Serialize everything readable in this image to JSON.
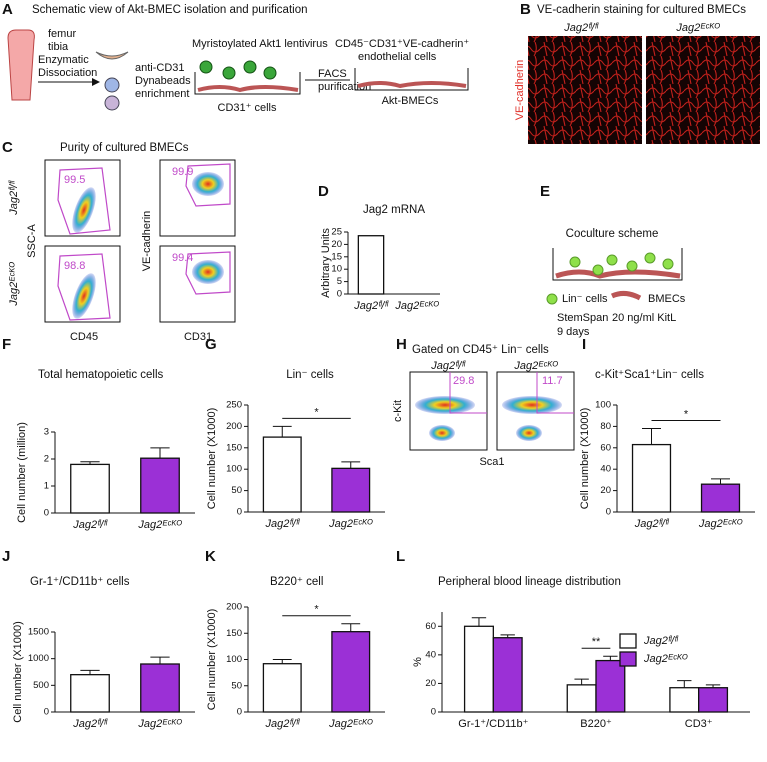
{
  "panel_letters": [
    "A",
    "B",
    "C",
    "D",
    "E",
    "F",
    "G",
    "H",
    "I",
    "J",
    "K",
    "L"
  ],
  "schematic": {
    "title": "Schematic view of Akt-BMEC isolation and purification",
    "bones": [
      "femur",
      "tibia"
    ],
    "dissociation": [
      "Enzymatic",
      "Dissociation"
    ],
    "enrichment": [
      "anti-CD31",
      "Dynabeads",
      "enrichment"
    ],
    "lentivirus": "Myristoylated Akt1 lentivirus",
    "cd31_cells": "CD31⁺ cells",
    "facs": [
      "FACS",
      "purification"
    ],
    "endothelial": [
      "CD45⁻CD31⁺VE-cadherin⁺",
      "endothelial cells"
    ],
    "akt_bmecs": "Akt-BMECs"
  },
  "staining": {
    "title": "VE-cadherin staining for cultured BMECs",
    "groups": [
      "Jag2ᶠˡ/ᶠˡ",
      "Jag2ᴱᶜᴷᴼ"
    ],
    "ylabel": "VE-cadherin"
  },
  "purity": {
    "title": "Purity of cultured BMECs",
    "rows": [
      "Jag2ᶠˡ/ᶠˡ",
      "Jag2ᴱᶜᴷᴼ"
    ],
    "left_ylabel": "SSC-A",
    "left_xlabel": "CD45",
    "right_ylabel": "VE-cadherin",
    "right_xlabel": "CD31",
    "left_gates": [
      "99.5",
      "98.8"
    ],
    "right_gates": [
      "99.9",
      "99.4"
    ]
  },
  "coculture": {
    "title": "Coculture scheme",
    "lin_cells": "Lin⁻ cells",
    "bmecs": "BMECs",
    "medium": [
      "StemSpan",
      "9 days"
    ],
    "kitl": "20 ng/ml KitL"
  },
  "gating": {
    "title": "Gated on CD45⁺ Lin⁻ cells",
    "groups": [
      "Jag2ᶠˡ/ᶠˡ",
      "Jag2ᴱᶜᴷᴼ"
    ],
    "gates": [
      "29.8",
      "11.7"
    ],
    "ylabel": "c-Kit",
    "xlabel": "Sca1"
  },
  "chart_data": [
    {
      "type": "bar",
      "title": "Jag2 mRNA",
      "ylabel": "Arbitrary Units",
      "categories": [
        "Jag2ᶠˡ/ᶠˡ",
        "Jag2ᴱᶜᴷᴼ"
      ],
      "values": [
        23.5,
        0
      ],
      "colors": [
        "#ffffff",
        "#ffffff"
      ],
      "ylim": [
        0,
        25
      ],
      "yticks": [
        0,
        5,
        10,
        15,
        20,
        25
      ]
    },
    {
      "type": "bar",
      "title": "Total hematopoietic cells",
      "ylabel": "Cell number (million)",
      "categories": [
        "Jag2ᶠˡ/ᶠˡ",
        "Jag2ᴱᶜᴷᴼ"
      ],
      "values": [
        1.8,
        2.03
      ],
      "errors": [
        0.1,
        0.38
      ],
      "colors": [
        "#ffffff",
        "#9b30d6"
      ],
      "ylim": [
        0,
        3
      ],
      "yticks": [
        0,
        1,
        2,
        3
      ]
    },
    {
      "type": "bar",
      "title": "Lin⁻ cells",
      "ylabel": "Cell number (X1000)",
      "categories": [
        "Jag2ᶠˡ/ᶠˡ",
        "Jag2ᴱᶜᴷᴼ"
      ],
      "values": [
        175,
        102
      ],
      "errors": [
        25,
        15
      ],
      "colors": [
        "#ffffff",
        "#9b30d6"
      ],
      "ylim": [
        0,
        250
      ],
      "yticks": [
        0,
        50,
        100,
        150,
        200,
        250
      ],
      "significance": "*"
    },
    {
      "type": "bar",
      "title": "c-Kit⁺Sca1⁺Lin⁻ cells",
      "ylabel": "Cell number (X1000)",
      "categories": [
        "Jag2ᶠˡ/ᶠˡ",
        "Jag2ᴱᶜᴷᴼ"
      ],
      "values": [
        63,
        26
      ],
      "errors": [
        15,
        5
      ],
      "colors": [
        "#ffffff",
        "#9b30d6"
      ],
      "ylim": [
        0,
        100
      ],
      "yticks": [
        0,
        20,
        40,
        60,
        80,
        100
      ],
      "significance": "*"
    },
    {
      "type": "bar",
      "title": "Gr-1⁺/CD11b⁺ cells",
      "ylabel": "Cell number (X1000)",
      "categories": [
        "Jag2ᶠˡ/ᶠˡ",
        "Jag2ᴱᶜᴷᴼ"
      ],
      "values": [
        700,
        900
      ],
      "errors": [
        80,
        130
      ],
      "colors": [
        "#ffffff",
        "#9b30d6"
      ],
      "ylim": [
        0,
        1500
      ],
      "yticks": [
        0,
        500,
        1000,
        1500
      ]
    },
    {
      "type": "bar",
      "title": "B220⁺ cell",
      "ylabel": "Cell number (X1000)",
      "categories": [
        "Jag2ᶠˡ/ᶠˡ",
        "Jag2ᴱᶜᴷᴼ"
      ],
      "values": [
        92,
        153
      ],
      "errors": [
        8,
        15
      ],
      "colors": [
        "#ffffff",
        "#9b30d6"
      ],
      "ylim": [
        0,
        200
      ],
      "yticks": [
        0,
        50,
        100,
        150,
        200
      ],
      "significance": "*"
    },
    {
      "type": "grouped_bar",
      "title": "Peripheral blood lineage distribution",
      "ylabel": "%",
      "categories": [
        "Gr-1⁺/CD11b⁺",
        "B220⁺",
        "CD3⁺"
      ],
      "series": [
        {
          "name": "Jag2ᶠˡ/ᶠˡ",
          "color": "#ffffff",
          "values": [
            60,
            19,
            17
          ],
          "errors": [
            6,
            4,
            5
          ]
        },
        {
          "name": "Jag2ᴱᶜᴷᴼ",
          "color": "#9b30d6",
          "values": [
            52,
            36,
            17
          ],
          "errors": [
            2,
            3,
            2
          ]
        }
      ],
      "significance": [
        null,
        "**",
        null
      ],
      "ylim": [
        0,
        70
      ],
      "yticks": [
        0,
        20,
        40,
        60
      ]
    }
  ]
}
